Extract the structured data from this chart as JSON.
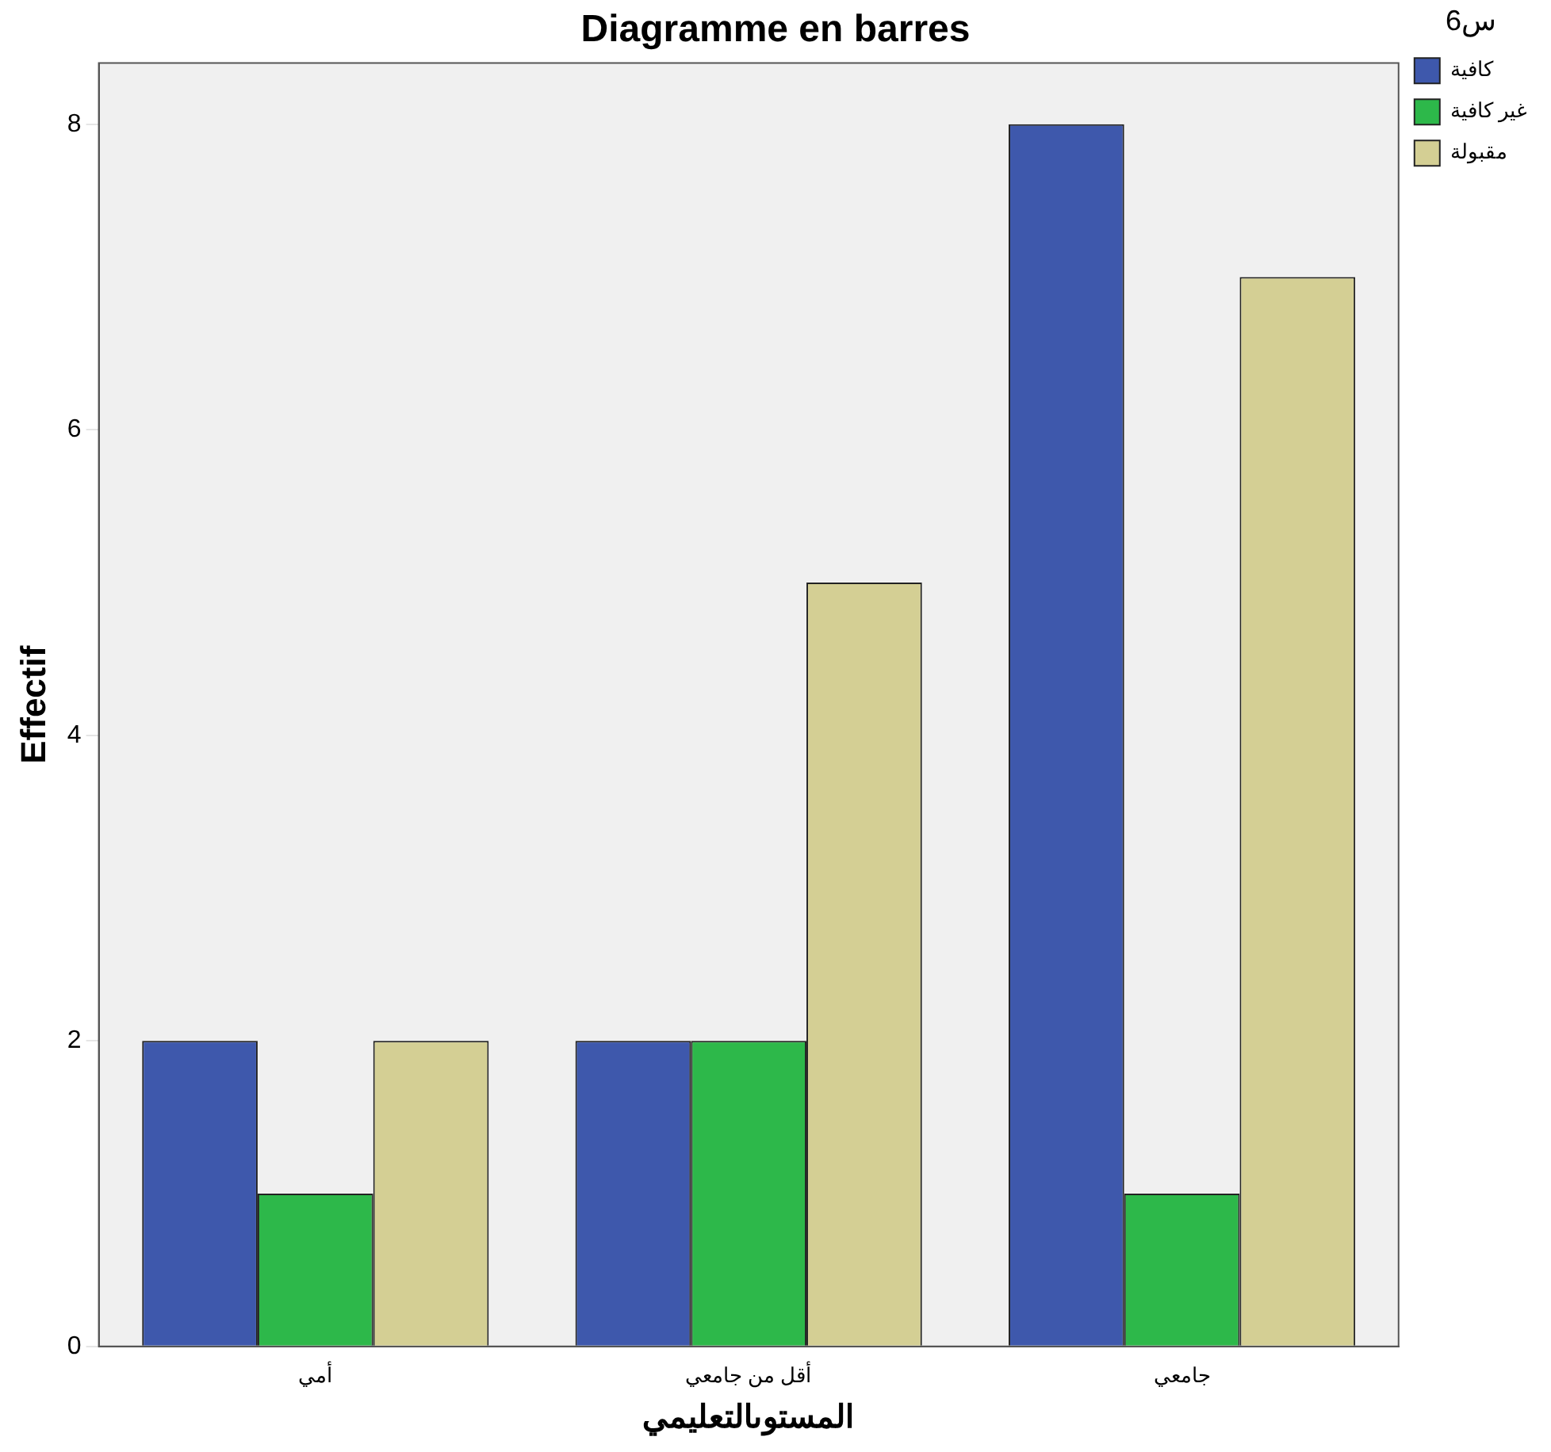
{
  "chart_data": {
    "type": "bar",
    "title": "Diagramme en barres",
    "xlabel": "المستوىالتعليمي",
    "ylabel": "Effectif",
    "legend_title": "س6",
    "categories": [
      "أمي",
      "أقل من جامعي",
      "جامعي"
    ],
    "series": [
      {
        "name": "كافية",
        "color": "#3e58ac",
        "values": [
          2,
          2,
          8
        ]
      },
      {
        "name": "غير كافية",
        "color": "#2db84a",
        "values": [
          1,
          2,
          1
        ]
      },
      {
        "name": "مقبولة",
        "color": "#d4cf94",
        "values": [
          2,
          5,
          7
        ]
      }
    ],
    "ylim": [
      0,
      8.4
    ],
    "yticks": [
      0,
      2,
      4,
      6,
      8
    ],
    "grid": false,
    "legend": "right"
  }
}
